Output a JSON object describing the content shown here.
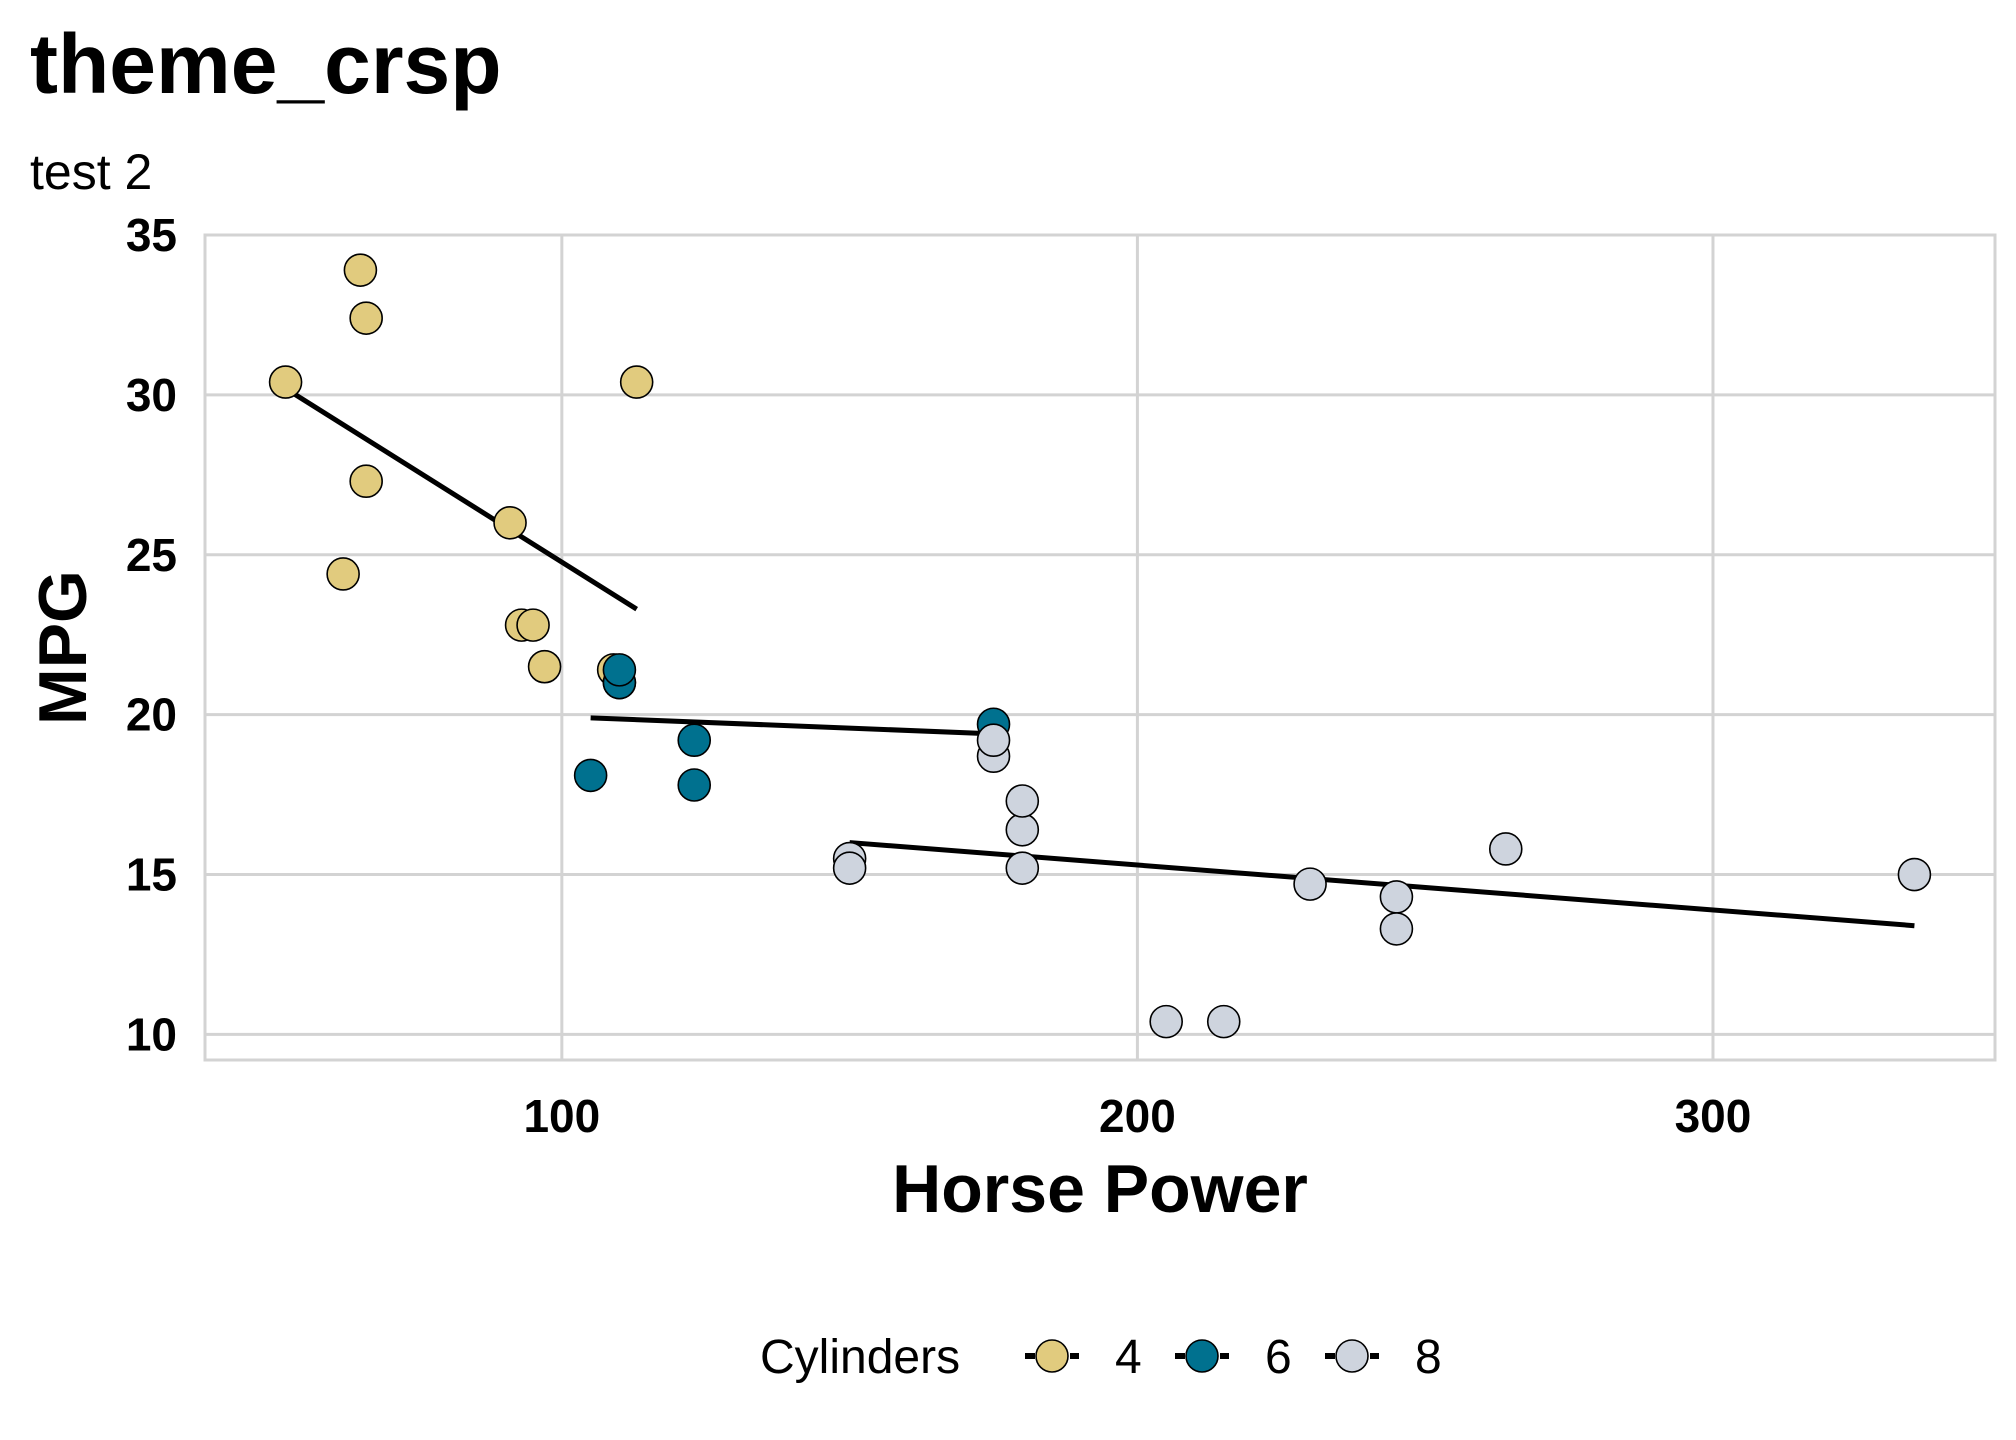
{
  "chart_data": {
    "type": "scatter",
    "title": "theme_crsp",
    "subtitle": "test 2",
    "xlabel": "Horse Power",
    "ylabel": "MPG",
    "xlim": [
      38,
      349
    ],
    "ylim": [
      9.2,
      35
    ],
    "x_ticks": [
      100,
      200,
      300
    ],
    "y_ticks": [
      10,
      15,
      20,
      25,
      30,
      35
    ],
    "grid": true,
    "legend": {
      "title": "Cylinders",
      "position": "bottom"
    },
    "series": [
      {
        "name": "4",
        "color": "#E1CB7E",
        "points": [
          {
            "x": 93,
            "y": 22.8
          },
          {
            "x": 62,
            "y": 24.4
          },
          {
            "x": 95,
            "y": 22.8
          },
          {
            "x": 66,
            "y": 32.4
          },
          {
            "x": 52,
            "y": 30.4
          },
          {
            "x": 65,
            "y": 33.9
          },
          {
            "x": 97,
            "y": 21.5
          },
          {
            "x": 66,
            "y": 27.3
          },
          {
            "x": 91,
            "y": 26.0
          },
          {
            "x": 113,
            "y": 30.4
          },
          {
            "x": 109,
            "y": 21.4
          }
        ],
        "trend": {
          "x1": 52,
          "y1": 30.2,
          "x2": 113,
          "y2": 23.3
        }
      },
      {
        "name": "6",
        "color": "#00718F",
        "points": [
          {
            "x": 110,
            "y": 21.0
          },
          {
            "x": 110,
            "y": 21.0
          },
          {
            "x": 110,
            "y": 21.4
          },
          {
            "x": 105,
            "y": 18.1
          },
          {
            "x": 123,
            "y": 19.2
          },
          {
            "x": 123,
            "y": 17.8
          },
          {
            "x": 175,
            "y": 19.7
          }
        ],
        "trend": {
          "x1": 105,
          "y1": 19.9,
          "x2": 175,
          "y2": 19.4
        }
      },
      {
        "name": "8",
        "color": "#CED4DE",
        "points": [
          {
            "x": 175,
            "y": 18.7
          },
          {
            "x": 245,
            "y": 14.3
          },
          {
            "x": 180,
            "y": 16.4
          },
          {
            "x": 180,
            "y": 17.3
          },
          {
            "x": 180,
            "y": 15.2
          },
          {
            "x": 205,
            "y": 10.4
          },
          {
            "x": 215,
            "y": 10.4
          },
          {
            "x": 230,
            "y": 14.7
          },
          {
            "x": 150,
            "y": 15.5
          },
          {
            "x": 150,
            "y": 15.2
          },
          {
            "x": 245,
            "y": 13.3
          },
          {
            "x": 175,
            "y": 19.2
          },
          {
            "x": 264,
            "y": 15.8
          },
          {
            "x": 335,
            "y": 15.0
          }
        ],
        "trend": {
          "x1": 150,
          "y1": 16.0,
          "x2": 335,
          "y2": 13.4
        }
      }
    ]
  }
}
